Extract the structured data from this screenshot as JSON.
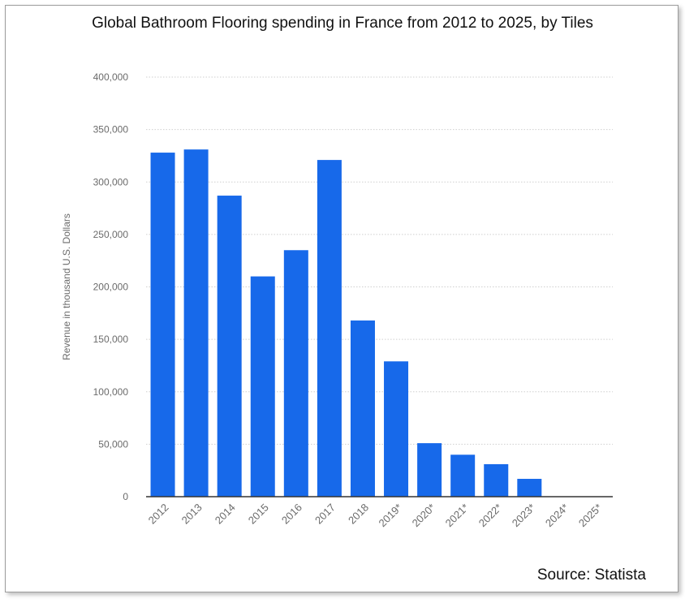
{
  "chart_data": {
    "type": "bar",
    "title": "Global Bathroom Flooring spending in France from 2012 to 2025, by Tiles",
    "xlabel": "",
    "ylabel": "Revenue in thousand U.S. Dollars",
    "ylim": [
      0,
      400000
    ],
    "yticks": [
      "0",
      "50,000",
      "100,000",
      "150,000",
      "200,000",
      "250,000",
      "300,000",
      "350,000",
      "400,000"
    ],
    "ytick_values": [
      0,
      50000,
      100000,
      150000,
      200000,
      250000,
      300000,
      350000,
      400000
    ],
    "categories": [
      "2012",
      "2013",
      "2014",
      "2015",
      "2016",
      "2017",
      "2018",
      "2019*",
      "2020*",
      "2021*",
      "2022*",
      "2023*",
      "2024*",
      "2025*"
    ],
    "values": [
      328000,
      331000,
      287000,
      210000,
      235000,
      321000,
      168000,
      129000,
      51000,
      40000,
      31000,
      17000,
      0,
      0
    ],
    "bar_color": "#1769ea",
    "grid": true,
    "legend": "none"
  },
  "source": "Source: Statista"
}
